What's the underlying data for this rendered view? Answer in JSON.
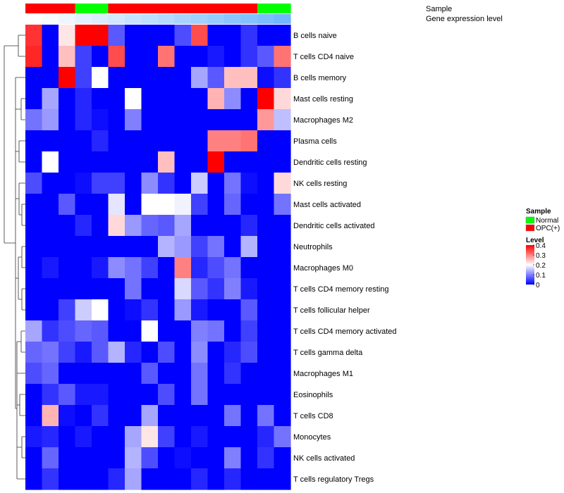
{
  "chart_data": {
    "type": "heatmap",
    "rows": [
      "B cells naive",
      "T cells CD4 naive",
      "B cells memory",
      "Mast cells resting",
      "Macrophages M2",
      "Plasma cells",
      "Dendritic cells resting",
      "NK cells resting",
      "Mast cells activated",
      "Dendritic cells activated",
      "Neutrophils",
      "Macrophages M0",
      "T cells CD4 memory resting",
      "T cells follicular helper",
      "T cells CD4 memory activated",
      "T cells gamma delta",
      "Macrophages M1",
      "Eosinophils",
      "T cells CD8",
      "Monocytes",
      "NK cells activated",
      "T cells regulatory  Tregs"
    ],
    "column_annotations": {
      "sample_track_label": "Sample",
      "expression_track_label": "Gene expression level",
      "sample": [
        "OPC(+)",
        "OPC(+)",
        "OPC(+)",
        "Normal",
        "Normal",
        "OPC(+)",
        "OPC(+)",
        "OPC(+)",
        "OPC(+)",
        "OPC(+)",
        "OPC(+)",
        "OPC(+)",
        "OPC(+)",
        "OPC(+)",
        "Normal",
        "Normal"
      ],
      "gene_expression_level": [
        0.0,
        0.03,
        0.06,
        0.1,
        0.13,
        0.16,
        0.2,
        0.23,
        0.26,
        0.3,
        0.33,
        0.36,
        0.4,
        0.43,
        0.46,
        0.5
      ]
    },
    "values": [
      [
        0.36,
        0.0,
        0.22,
        0.4,
        0.4,
        0.07,
        0.0,
        0.0,
        0.0,
        0.06,
        0.34,
        0.0,
        0.0,
        0.04,
        0.0,
        0.0
      ],
      [
        0.37,
        0.0,
        0.25,
        0.05,
        0.0,
        0.34,
        0.0,
        0.0,
        0.31,
        0.0,
        0.0,
        0.02,
        0.0,
        0.04,
        0.07,
        0.31
      ],
      [
        0.0,
        0.0,
        0.4,
        0.05,
        0.2,
        0.0,
        0.0,
        0.0,
        0.0,
        0.0,
        0.13,
        0.07,
        0.25,
        0.25,
        0.01,
        0.04
      ],
      [
        0.0,
        0.13,
        0.0,
        0.03,
        0.0,
        0.0,
        0.2,
        0.0,
        0.0,
        0.0,
        0.0,
        0.26,
        0.11,
        0.0,
        0.4,
        0.23
      ],
      [
        0.09,
        0.12,
        0.0,
        0.03,
        0.01,
        0.0,
        0.1,
        0.0,
        0.0,
        0.0,
        0.0,
        0.0,
        0.0,
        0.0,
        0.28,
        0.15
      ],
      [
        0.0,
        0.0,
        0.0,
        0.0,
        0.03,
        0.0,
        0.0,
        0.0,
        0.0,
        0.0,
        0.0,
        0.3,
        0.3,
        0.31,
        0.0,
        0.0
      ],
      [
        0.0,
        0.2,
        0.0,
        0.0,
        0.0,
        0.0,
        0.0,
        0.0,
        0.25,
        0.0,
        0.0,
        0.4,
        0.0,
        0.0,
        0.0,
        0.0
      ],
      [
        0.06,
        0.0,
        0.0,
        0.01,
        0.05,
        0.05,
        0.0,
        0.11,
        0.04,
        0.0,
        0.16,
        0.0,
        0.09,
        0.01,
        0.0,
        0.23
      ],
      [
        0.0,
        0.0,
        0.07,
        0.0,
        0.0,
        0.18,
        0.0,
        0.2,
        0.2,
        0.19,
        0.05,
        0.0,
        0.08,
        0.0,
        0.0,
        0.09
      ],
      [
        0.0,
        0.0,
        0.0,
        0.03,
        0.0,
        0.23,
        0.12,
        0.08,
        0.07,
        0.13,
        0.0,
        0.0,
        0.0,
        0.03,
        0.0,
        0.0
      ],
      [
        0.0,
        0.0,
        0.0,
        0.0,
        0.0,
        0.0,
        0.0,
        0.0,
        0.14,
        0.12,
        0.05,
        0.09,
        0.0,
        0.14,
        0.0,
        0.0
      ],
      [
        0.0,
        0.02,
        0.0,
        0.0,
        0.02,
        0.11,
        0.09,
        0.05,
        0.0,
        0.3,
        0.03,
        0.06,
        0.09,
        0.0,
        0.0,
        0.0
      ],
      [
        0.0,
        0.0,
        0.0,
        0.0,
        0.0,
        0.0,
        0.09,
        0.0,
        0.0,
        0.17,
        0.07,
        0.04,
        0.1,
        0.02,
        0.0,
        0.0
      ],
      [
        0.0,
        0.0,
        0.05,
        0.16,
        0.2,
        0.0,
        0.01,
        0.04,
        0.0,
        0.12,
        0.02,
        0.0,
        0.0,
        0.07,
        0.0,
        0.0
      ],
      [
        0.13,
        0.04,
        0.06,
        0.08,
        0.07,
        0.0,
        0.0,
        0.2,
        0.0,
        0.0,
        0.1,
        0.09,
        0.0,
        0.05,
        0.0,
        0.0
      ],
      [
        0.08,
        0.09,
        0.05,
        0.02,
        0.07,
        0.14,
        0.03,
        0.0,
        0.06,
        0.0,
        0.11,
        0.0,
        0.03,
        0.06,
        0.0,
        0.0
      ],
      [
        0.06,
        0.08,
        0.0,
        0.0,
        0.0,
        0.0,
        0.0,
        0.07,
        0.0,
        0.0,
        0.09,
        0.0,
        0.04,
        0.0,
        0.0,
        0.0
      ],
      [
        0.0,
        0.04,
        0.07,
        0.02,
        0.02,
        0.0,
        0.0,
        0.0,
        0.06,
        0.0,
        0.09,
        0.0,
        0.0,
        0.0,
        0.0,
        0.0
      ],
      [
        0.0,
        0.26,
        0.01,
        0.0,
        0.04,
        0.0,
        0.0,
        0.13,
        0.0,
        0.0,
        0.0,
        0.0,
        0.09,
        0.0,
        0.09,
        0.0
      ],
      [
        0.02,
        0.03,
        0.0,
        0.02,
        0.0,
        0.0,
        0.13,
        0.22,
        0.05,
        0.0,
        0.02,
        0.0,
        0.0,
        0.0,
        0.03,
        0.09
      ],
      [
        0.0,
        0.08,
        0.0,
        0.0,
        0.0,
        0.0,
        0.14,
        0.06,
        0.0,
        0.01,
        0.0,
        0.0,
        0.1,
        0.0,
        0.04,
        0.0
      ],
      [
        0.0,
        0.04,
        0.0,
        0.0,
        0.0,
        0.03,
        0.13,
        0.0,
        0.0,
        0.0,
        0.03,
        0.0,
        0.03,
        0.0,
        0.0,
        0.0
      ]
    ],
    "color_scale": {
      "min": 0,
      "mid": 0.2,
      "max": 0.4,
      "low_color": "#0000ff",
      "mid_color": "#ffffff",
      "high_color": "#ff0000"
    },
    "legend": {
      "sample_title": "Sample",
      "sample_items": [
        {
          "label": "Normal",
          "color": "#00ff00"
        },
        {
          "label": "OPC(+)",
          "color": "#ff0000"
        }
      ],
      "level_title": "Level",
      "level_ticks": [
        "0.4",
        "0.3",
        "0.2",
        "0.1",
        "0"
      ]
    },
    "row_dendrogram": true,
    "placement": "legend right"
  }
}
